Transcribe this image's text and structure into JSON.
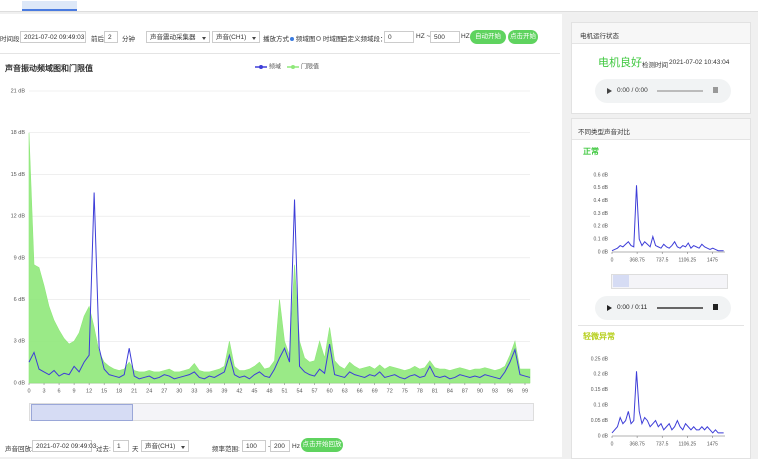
{
  "toolbar": {
    "time_label": "时间段:",
    "time": "2021-07-02 09:49:03",
    "around_label": "前后",
    "around": "2",
    "minutes": "分钟",
    "device": "声音震动采集器",
    "channel": "声音(CH1)",
    "mode_label": "播放方式",
    "mode_freq": "频域图",
    "mode_time": "时域图",
    "custom_label": "自定义频域段：",
    "from": "0",
    "hz_tilde": "HZ ~",
    "to": "500",
    "hz": "HZ",
    "auto_button": "自动开始",
    "start_button": "点击开始"
  },
  "chart_data": [
    {
      "type": "line",
      "title": "声音振动频域图和门限值",
      "legend": "top",
      "grid": true,
      "x": [
        0,
        1,
        2,
        3,
        4,
        5,
        6,
        7,
        8,
        9,
        10,
        11,
        12,
        13,
        14,
        15,
        16,
        17,
        18,
        19,
        20,
        21,
        22,
        23,
        24,
        25,
        26,
        27,
        28,
        29,
        30,
        31,
        32,
        33,
        34,
        35,
        36,
        37,
        38,
        39,
        40,
        41,
        42,
        43,
        44,
        45,
        46,
        47,
        48,
        49,
        50,
        51,
        52,
        53,
        54,
        55,
        56,
        57,
        58,
        59,
        60,
        61,
        62,
        63,
        64,
        65,
        66,
        67,
        68,
        69,
        70,
        71,
        72,
        73,
        74,
        75,
        76,
        77,
        78,
        79,
        80,
        81,
        82,
        83,
        84,
        85,
        86,
        87,
        88,
        89,
        90,
        91,
        92,
        93,
        94,
        95,
        96,
        97,
        98,
        99,
        100
      ],
      "series": [
        {
          "name": "频域",
          "type": "line",
          "color": "#3d3dd8",
          "values": [
            1.5,
            2.2,
            1.0,
            0.8,
            0.6,
            0.9,
            0.5,
            0.7,
            0.6,
            1.2,
            0.8,
            1.5,
            2.0,
            13.7,
            2.5,
            1.0,
            0.6,
            0.5,
            0.4,
            0.6,
            2.5,
            0.5,
            0.3,
            0.4,
            0.5,
            0.3,
            0.4,
            0.6,
            0.5,
            0.3,
            0.4,
            0.5,
            0.6,
            0.8,
            0.4,
            0.3,
            0.5,
            0.4,
            0.6,
            0.8,
            2.0,
            0.6,
            0.4,
            0.5,
            0.3,
            0.6,
            0.8,
            0.5,
            0.4,
            1.0,
            1.8,
            2.5,
            1.5,
            13.2,
            1.2,
            0.8,
            0.6,
            0.5,
            1.0,
            0.7,
            2.8,
            0.6,
            0.5,
            0.4,
            0.8,
            0.6,
            0.5,
            0.4,
            0.6,
            0.5,
            0.8,
            0.4,
            0.5,
            0.6,
            0.4,
            0.3,
            0.5,
            0.6,
            0.4,
            0.5,
            1.2,
            0.5,
            0.4,
            0.5,
            0.3,
            0.4,
            0.6,
            0.5,
            0.4,
            0.5,
            0.4,
            0.6,
            0.5,
            0.4,
            0.3,
            0.8,
            1.5,
            2.4,
            0.6,
            0.5,
            0.4
          ]
        },
        {
          "name": "门限值",
          "type": "area",
          "color": "#8fe87a",
          "values": [
            18.0,
            8.5,
            8.3,
            7.0,
            5.5,
            4.5,
            3.8,
            3.2,
            2.8,
            3.0,
            3.6,
            4.8,
            5.5,
            4.0,
            2.2,
            1.5,
            1.2,
            1.0,
            0.9,
            1.0,
            1.5,
            0.9,
            0.8,
            0.8,
            0.9,
            0.8,
            0.8,
            0.9,
            1.0,
            0.8,
            0.8,
            0.9,
            1.0,
            1.4,
            0.9,
            0.8,
            0.8,
            0.9,
            1.0,
            1.2,
            3.0,
            1.2,
            0.9,
            0.9,
            1.0,
            1.2,
            1.5,
            1.0,
            1.1,
            1.6,
            6.0,
            3.0,
            2.0,
            8.5,
            3.0,
            1.8,
            1.5,
            1.6,
            3.0,
            1.8,
            4.0,
            1.6,
            1.2,
            1.0,
            1.5,
            1.2,
            1.0,
            1.1,
            1.2,
            1.0,
            1.3,
            1.0,
            1.2,
            1.1,
            1.0,
            0.9,
            1.0,
            1.2,
            1.0,
            1.1,
            1.6,
            1.1,
            1.0,
            1.0,
            0.9,
            1.0,
            1.1,
            1.0,
            0.9,
            1.0,
            1.0,
            1.1,
            1.0,
            0.9,
            1.0,
            1.2,
            2.0,
            3.0,
            1.0,
            1.0,
            1.0
          ]
        }
      ],
      "xlim": [
        0,
        100
      ],
      "xticks": [
        0,
        3,
        6,
        9,
        12,
        15,
        18,
        21,
        24,
        27,
        30,
        33,
        36,
        39,
        42,
        45,
        48,
        51,
        54,
        57,
        60,
        63,
        66,
        69,
        72,
        75,
        78,
        81,
        84,
        87,
        90,
        93,
        96,
        99
      ],
      "ylim": [
        0,
        21
      ],
      "yticks": [
        {
          "value": 0,
          "label": "0 dB"
        },
        {
          "value": 3,
          "label": "3 dB"
        },
        {
          "value": 6,
          "label": "6 dB"
        },
        {
          "value": 9,
          "label": "9 dB"
        },
        {
          "value": 12,
          "label": "12 dB"
        },
        {
          "value": 15,
          "label": "15 dB"
        },
        {
          "value": 18,
          "label": "18 dB"
        },
        {
          "value": 21,
          "label": "21 dB"
        }
      ]
    },
    {
      "type": "line",
      "title": "正常",
      "grid": false,
      "color": "#3d3dd8",
      "x": [
        0,
        40,
        80,
        120,
        160,
        200,
        240,
        280,
        320,
        360,
        400,
        440,
        480,
        520,
        560,
        600,
        640,
        680,
        720,
        760,
        800,
        840,
        880,
        920,
        960,
        1000,
        1040,
        1080,
        1120,
        1160,
        1200,
        1240,
        1280,
        1320,
        1360,
        1400,
        1440,
        1480,
        1520,
        1560,
        1600,
        1640
      ],
      "values": [
        0.01,
        0.02,
        0.03,
        0.05,
        0.04,
        0.06,
        0.08,
        0.05,
        0.04,
        0.52,
        0.1,
        0.05,
        0.08,
        0.06,
        0.04,
        0.12,
        0.05,
        0.04,
        0.03,
        0.06,
        0.04,
        0.03,
        0.05,
        0.08,
        0.04,
        0.03,
        0.05,
        0.04,
        0.07,
        0.03,
        0.05,
        0.04,
        0.03,
        0.06,
        0.04,
        0.03,
        0.02,
        0.03,
        0.02,
        0.01,
        0.01,
        0.01
      ],
      "xlim": [
        0,
        1660
      ],
      "xticks": [
        0,
        368.75,
        737.5,
        1106.25,
        1475
      ],
      "ylim": [
        0,
        0.6
      ],
      "yticks": [
        {
          "value": 0,
          "label": "0 dB"
        },
        {
          "value": 0.1,
          "label": "0.1 dB"
        },
        {
          "value": 0.2,
          "label": "0.2 dB"
        },
        {
          "value": 0.3,
          "label": "0.3 dB"
        },
        {
          "value": 0.4,
          "label": "0.4 dB"
        },
        {
          "value": 0.5,
          "label": "0.5 dB"
        },
        {
          "value": 0.6,
          "label": "0.6 dB"
        }
      ]
    },
    {
      "type": "line",
      "title": "轻微异常",
      "grid": false,
      "color": "#3d3dd8",
      "x": [
        0,
        40,
        80,
        120,
        160,
        200,
        240,
        280,
        320,
        360,
        400,
        440,
        480,
        520,
        560,
        600,
        640,
        680,
        720,
        760,
        800,
        840,
        880,
        920,
        960,
        1000,
        1040,
        1080,
        1120,
        1160,
        1200,
        1240,
        1280,
        1320,
        1360,
        1400,
        1440,
        1480,
        1520,
        1560,
        1600,
        1640
      ],
      "values": [
        0.01,
        0.02,
        0.03,
        0.06,
        0.04,
        0.05,
        0.08,
        0.04,
        0.05,
        0.21,
        0.08,
        0.04,
        0.06,
        0.05,
        0.03,
        0.04,
        0.05,
        0.03,
        0.04,
        0.02,
        0.03,
        0.04,
        0.02,
        0.03,
        0.05,
        0.03,
        0.02,
        0.04,
        0.03,
        0.02,
        0.03,
        0.02,
        0.02,
        0.03,
        0.02,
        0.03,
        0.02,
        0.01,
        0.02,
        0.01,
        0.01,
        0.01
      ],
      "xlim": [
        0,
        1660
      ],
      "xticks": [
        0,
        368.75,
        737.5,
        1106.25,
        1475
      ],
      "ylim": [
        0,
        0.25
      ],
      "yticks": [
        {
          "value": 0,
          "label": "0 dB"
        },
        {
          "value": 0.05,
          "label": "0.05 dB"
        },
        {
          "value": 0.1,
          "label": "0.1 dB"
        },
        {
          "value": 0.15,
          "label": "0.15 dB"
        },
        {
          "value": 0.2,
          "label": "0.2 dB"
        },
        {
          "value": 0.25,
          "label": "0.25 dB"
        }
      ]
    }
  ],
  "status_panel": {
    "header": "电机运行状态",
    "status": "电机良好",
    "check_label": "检测时间",
    "check_time": "2021-07-02 10:43:04",
    "audio_time": "0:00 / 0:00"
  },
  "compare_panel": {
    "header": "不同类型声音对比",
    "normal_audio_time": "0:00 / 0:11"
  },
  "playback": {
    "label": "声音回放:",
    "time": "2021-07-02 09:49:03",
    "past_label": "过去:",
    "days": "1",
    "day_unit": "天",
    "channel": "声音(CH1)",
    "range_label": "频率范围:",
    "from": "100",
    "dash": "-",
    "to": "200",
    "hz": "Hz",
    "button": "点击开始回放"
  }
}
